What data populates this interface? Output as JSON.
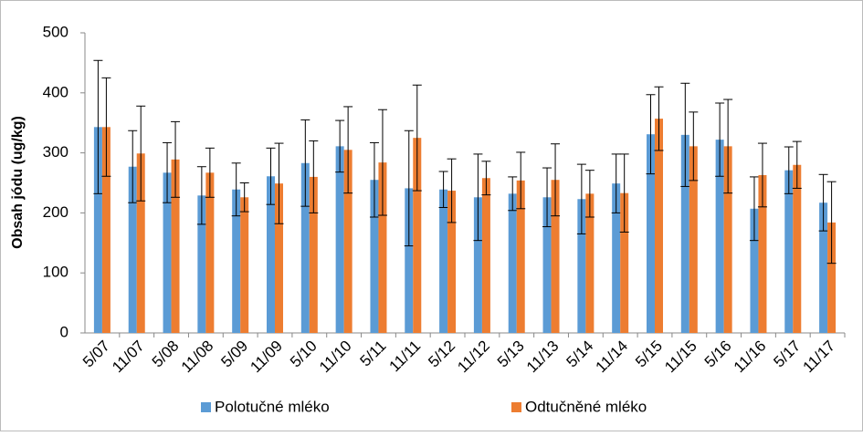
{
  "chart_data": {
    "type": "bar",
    "y_label": "Obsah jódu (ug/kg)",
    "categories": [
      "5/07",
      "11/07",
      "5/08",
      "11/08",
      "5/09",
      "11/09",
      "5/10",
      "11/10",
      "5/11",
      "11/11",
      "5/12",
      "11/12",
      "5/13",
      "11/13",
      "5/14",
      "11/14",
      "5/15",
      "11/15",
      "5/16",
      "11/16",
      "5/17",
      "11/17"
    ],
    "series": [
      {
        "name": "Polotučné mléko",
        "color": "#5b9bd5",
        "values": [
          343,
          277,
          267,
          229,
          239,
          261,
          283,
          311,
          255,
          241,
          239,
          226,
          232,
          226,
          223,
          249,
          331,
          330,
          322,
          207,
          271,
          217
        ],
        "errors": [
          111,
          60,
          50,
          48,
          44,
          47,
          72,
          43,
          62,
          96,
          30,
          72,
          28,
          49,
          58,
          49,
          66,
          86,
          61,
          53,
          39,
          47
        ]
      },
      {
        "name": "Odtučněné mléko",
        "color": "#ed7d31",
        "values": [
          343,
          299,
          289,
          267,
          226,
          249,
          260,
          305,
          284,
          325,
          237,
          258,
          254,
          255,
          232,
          233,
          357,
          311,
          311,
          263,
          280,
          184
        ],
        "errors": [
          82,
          79,
          63,
          41,
          24,
          67,
          60,
          72,
          88,
          88,
          53,
          28,
          47,
          60,
          39,
          65,
          53,
          57,
          78,
          53,
          39,
          68
        ]
      }
    ],
    "ylim": [
      0,
      500
    ],
    "yticks": [
      0,
      100,
      200,
      300,
      400,
      500
    ],
    "grid": false
  }
}
